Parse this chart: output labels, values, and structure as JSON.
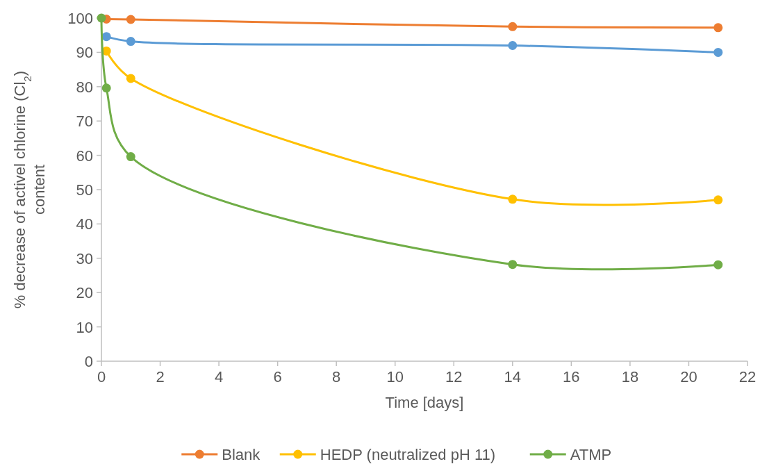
{
  "chart_data": {
    "type": "line",
    "xlabel": "Time [days]",
    "ylabel": "% decrease of activel chlorine (Cl$_{2}$) content",
    "xlim": [
      0,
      22
    ],
    "xticks": [
      0,
      2,
      4,
      6,
      8,
      10,
      12,
      14,
      16,
      18,
      20,
      22
    ],
    "ylim": [
      0,
      100
    ],
    "yticks": [
      0,
      10,
      20,
      30,
      40,
      50,
      60,
      70,
      80,
      90,
      100
    ],
    "x": [
      0,
      0.17,
      1,
      14,
      21
    ],
    "marker": "circle",
    "legend": "bottom",
    "grid": false,
    "series": [
      {
        "name": "Blank",
        "color": "#ed7d31",
        "values": [
          null,
          99.7,
          99.6,
          97.5,
          97.2
        ]
      },
      {
        "color": "#5b9bd5",
        "values": [
          null,
          94.6,
          93.2,
          92,
          90
        ]
      },
      {
        "name": "HEDP (neutralized pH 11)",
        "color": "#ffc000",
        "values": [
          null,
          90.4,
          82.4,
          47.2,
          47
        ]
      },
      {
        "name": "ATMP",
        "color": "#70ad47",
        "values": [
          100,
          79.6,
          59.6,
          28.2,
          28.1
        ]
      }
    ]
  }
}
